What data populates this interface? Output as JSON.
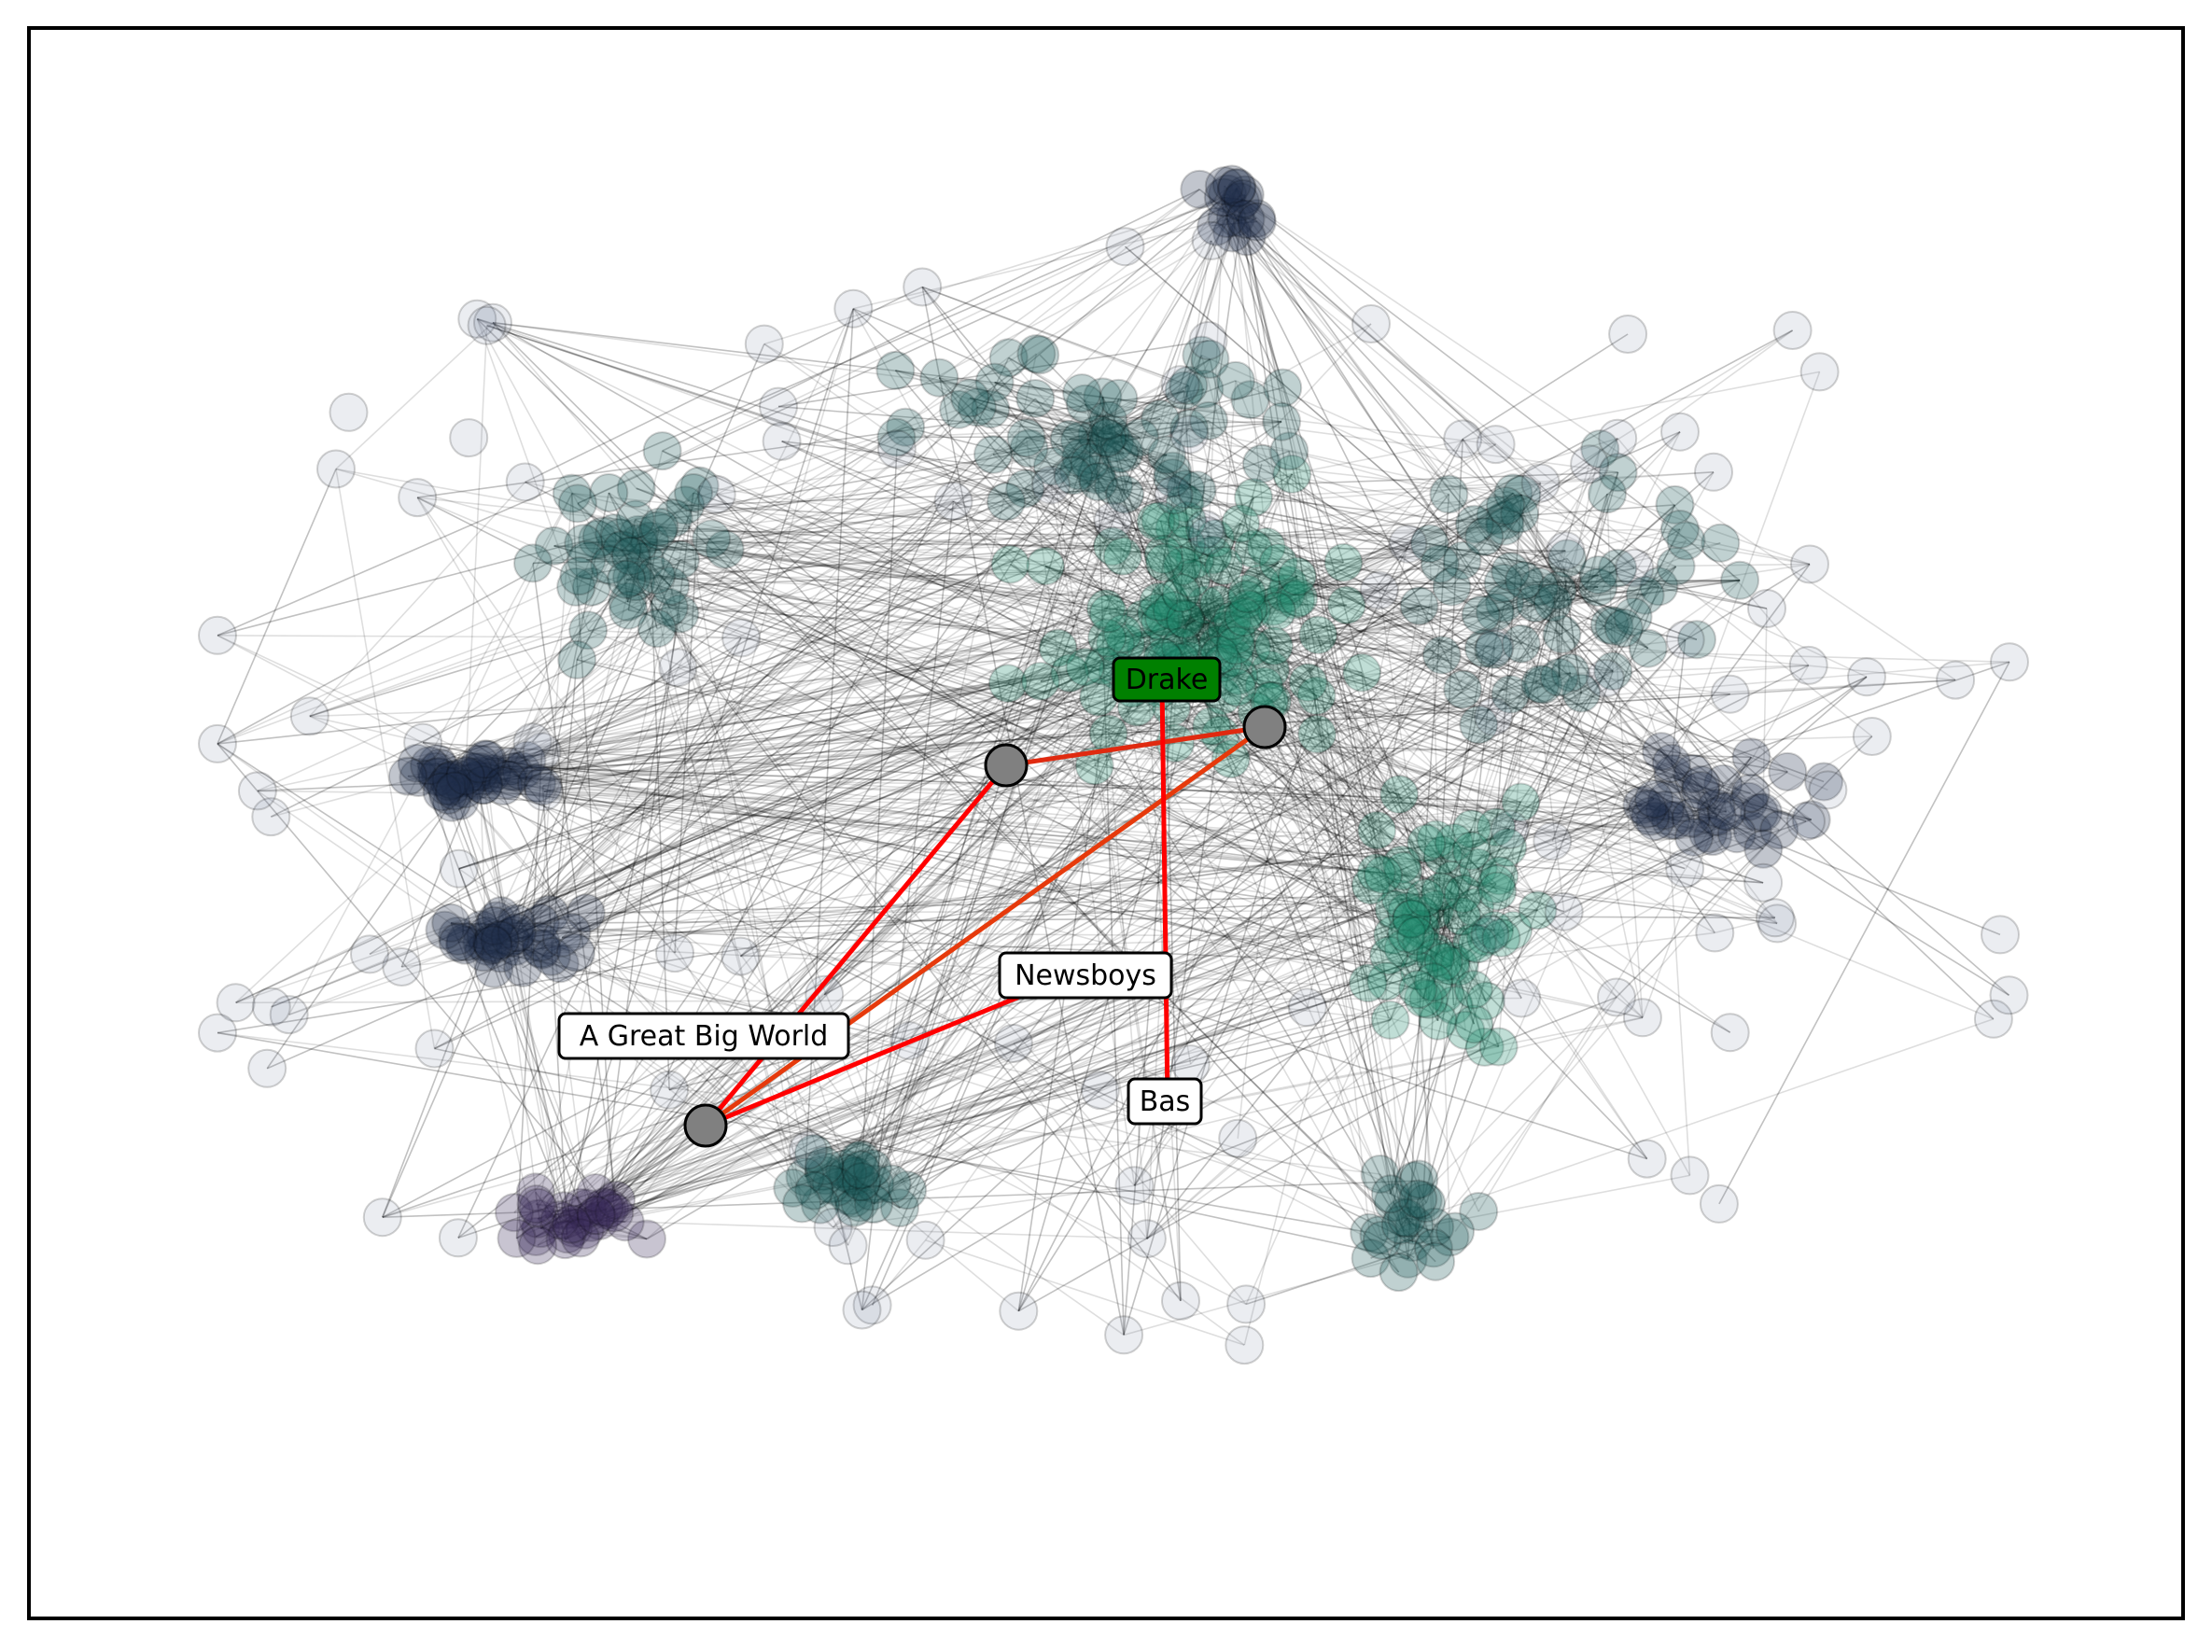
{
  "graph": {
    "highlight_color": "#ff0000",
    "highlight_node_color": "#808080",
    "target_label_color": "#008000",
    "label_color": "#ffffff",
    "background_palette": [
      "#1f2d4a",
      "#1d5a5a",
      "#1e8a6a",
      "#3b2a5a",
      "#6a8a2a"
    ],
    "labels": {
      "drake": "Drake",
      "newsboys": "Newsboys",
      "great_big_world": "A Great Big World",
      "bas": "Bas"
    },
    "highlighted_nodes": [
      "node-a",
      "node-b",
      "node-c"
    ],
    "highlighted_paths": [
      [
        "A Great Big World",
        "node-a",
        "node-b",
        "Drake"
      ],
      [
        "A Great Big World",
        "node-b",
        "Drake"
      ],
      [
        "A Great Big World",
        "Newsboys"
      ],
      [
        "Drake",
        "Bas"
      ]
    ]
  }
}
